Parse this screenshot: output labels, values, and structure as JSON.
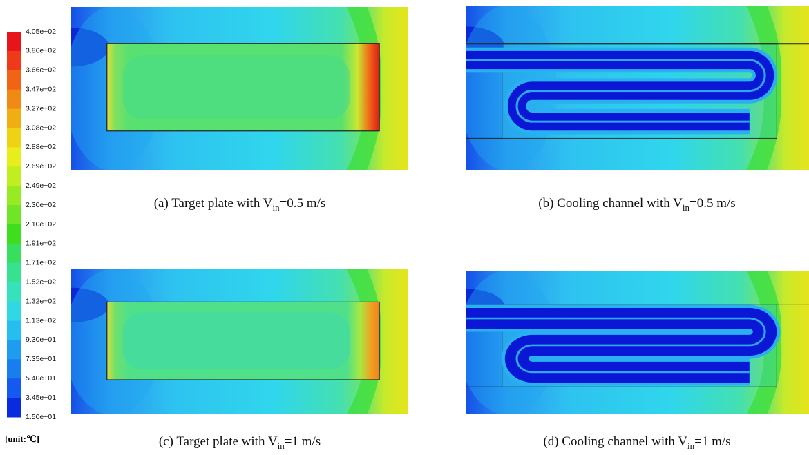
{
  "colorbar": {
    "labels": [
      "4.05e+02",
      "3.86e+02",
      "3.66e+02",
      "3.47e+02",
      "3.27e+02",
      "3.08e+02",
      "2.88e+02",
      "2.69e+02",
      "2.49e+02",
      "2.30e+02",
      "2.10e+02",
      "1.91e+02",
      "1.71e+02",
      "1.52e+02",
      "1.32e+02",
      "1.13e+02",
      "9.30e+01",
      "7.35e+01",
      "5.40e+01",
      "3.45e+01",
      "1.50e+01"
    ],
    "unit": "[unit:℃]"
  },
  "panels": [
    {
      "caption": {
        "prefix": "(a) Target plate with V",
        "subscript": "in",
        "suffix": "=0.5 m/s"
      }
    },
    {
      "caption": {
        "prefix": "(b) Cooling channel with V",
        "subscript": "in",
        "suffix": "=0.5 m/s"
      }
    },
    {
      "caption": {
        "prefix": "(c) Target plate with V",
        "subscript": "in",
        "suffix": "=1 m/s"
      }
    },
    {
      "caption": {
        "prefix": "(d) Cooling channel with V",
        "subscript": "in",
        "suffix": "=1 m/s"
      }
    }
  ]
}
